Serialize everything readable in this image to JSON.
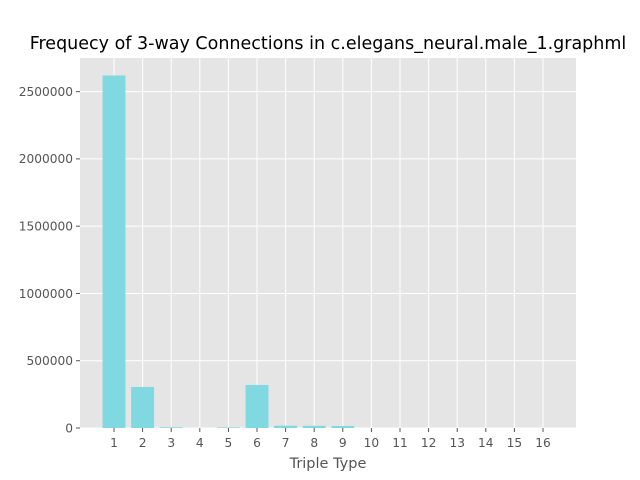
{
  "chart_data": {
    "type": "bar",
    "title": "Frequecy of 3-way Connections in c.elegans_neural.male_1.graphml",
    "xlabel": "Triple Type",
    "ylabel": "",
    "categories": [
      "1",
      "2",
      "3",
      "4",
      "5",
      "6",
      "7",
      "8",
      "9",
      "10",
      "11",
      "12",
      "13",
      "14",
      "15",
      "16"
    ],
    "values": [
      2620000,
      305000,
      5000,
      0,
      4000,
      320000,
      17000,
      16000,
      15000,
      0,
      0,
      0,
      0,
      0,
      0,
      0
    ],
    "ylim": [
      0,
      2750000
    ],
    "yticks": [
      0,
      500000,
      1000000,
      1500000,
      2000000,
      2500000
    ],
    "ytick_labels": [
      "0",
      "500000",
      "1000000",
      "1500000",
      "2000000",
      "2500000"
    ],
    "grid": true,
    "colors": {
      "bar": "#80d8e0",
      "plot_bg": "#e5e5e5",
      "grid": "#ffffff",
      "tick_text": "#555555",
      "title_text": "#000000"
    }
  }
}
